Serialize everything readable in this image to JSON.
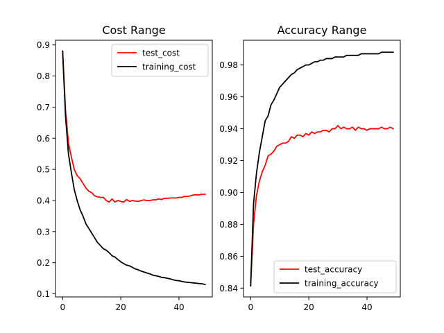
{
  "chart_data": [
    {
      "type": "line",
      "title": "Cost Range",
      "xlabel": "",
      "ylabel": "",
      "xlim": [
        -2.45,
        51.45
      ],
      "ylim": [
        0.09,
        0.915
      ],
      "xticks": [
        0,
        20,
        40
      ],
      "xtick_labels": [
        "0",
        "20",
        "40"
      ],
      "yticks": [
        0.1,
        0.2,
        0.3,
        0.4,
        0.5,
        0.6,
        0.7,
        0.8,
        0.9
      ],
      "ytick_labels": [
        "0.1",
        "0.2",
        "0.3",
        "0.4",
        "0.5",
        "0.6",
        "0.7",
        "0.8",
        "0.9"
      ],
      "grid": false,
      "legend_position": "top-right",
      "x": [
        0,
        1,
        2,
        3,
        4,
        5,
        6,
        7,
        8,
        9,
        10,
        11,
        12,
        13,
        14,
        15,
        16,
        17,
        18,
        19,
        20,
        21,
        22,
        23,
        24,
        25,
        26,
        27,
        28,
        29,
        30,
        31,
        32,
        33,
        34,
        35,
        36,
        37,
        38,
        39,
        40,
        41,
        42,
        43,
        44,
        45,
        46,
        47,
        48,
        49
      ],
      "series": [
        {
          "name": "test_cost",
          "color": "#ff0000",
          "values": [
            0.88,
            0.69,
            0.585,
            0.54,
            0.5,
            0.48,
            0.47,
            0.455,
            0.44,
            0.43,
            0.425,
            0.415,
            0.412,
            0.41,
            0.41,
            0.4,
            0.395,
            0.405,
            0.395,
            0.4,
            0.397,
            0.395,
            0.403,
            0.397,
            0.4,
            0.398,
            0.397,
            0.4,
            0.402,
            0.4,
            0.4,
            0.402,
            0.402,
            0.405,
            0.403,
            0.407,
            0.407,
            0.408,
            0.408,
            0.408,
            0.41,
            0.41,
            0.413,
            0.413,
            0.415,
            0.418,
            0.418,
            0.418,
            0.42,
            0.42
          ]
        },
        {
          "name": "training_cost",
          "color": "#000000",
          "values": [
            0.88,
            0.67,
            0.55,
            0.49,
            0.435,
            0.4,
            0.37,
            0.35,
            0.325,
            0.31,
            0.295,
            0.28,
            0.265,
            0.255,
            0.245,
            0.24,
            0.232,
            0.222,
            0.218,
            0.21,
            0.203,
            0.197,
            0.192,
            0.19,
            0.185,
            0.18,
            0.177,
            0.173,
            0.17,
            0.167,
            0.164,
            0.16,
            0.158,
            0.156,
            0.153,
            0.152,
            0.15,
            0.148,
            0.145,
            0.143,
            0.142,
            0.14,
            0.138,
            0.137,
            0.136,
            0.135,
            0.134,
            0.133,
            0.132,
            0.13
          ]
        }
      ]
    },
    {
      "type": "line",
      "title": "Accuracy Range",
      "xlabel": "",
      "ylabel": "",
      "xlim": [
        -2.45,
        51.45
      ],
      "ylim": [
        0.8345,
        0.9955
      ],
      "xticks": [
        0,
        20,
        40
      ],
      "xtick_labels": [
        "0",
        "20",
        "40"
      ],
      "yticks": [
        0.84,
        0.86,
        0.88,
        0.9,
        0.92,
        0.94,
        0.96,
        0.98
      ],
      "ytick_labels": [
        "0.84",
        "0.86",
        "0.88",
        "0.90",
        "0.92",
        "0.94",
        "0.96",
        "0.98"
      ],
      "grid": false,
      "legend_position": "bottom-right",
      "x": [
        0,
        1,
        2,
        3,
        4,
        5,
        6,
        7,
        8,
        9,
        10,
        11,
        12,
        13,
        14,
        15,
        16,
        17,
        18,
        19,
        20,
        21,
        22,
        23,
        24,
        25,
        26,
        27,
        28,
        29,
        30,
        31,
        32,
        33,
        34,
        35,
        36,
        37,
        38,
        39,
        40,
        41,
        42,
        43,
        44,
        45,
        46,
        47,
        48,
        49
      ],
      "series": [
        {
          "name": "test_accuracy",
          "color": "#ff0000",
          "values": [
            0.8415,
            0.88,
            0.898,
            0.907,
            0.913,
            0.917,
            0.923,
            0.924,
            0.926,
            0.929,
            0.93,
            0.931,
            0.931,
            0.932,
            0.935,
            0.934,
            0.936,
            0.936,
            0.935,
            0.937,
            0.936,
            0.938,
            0.937,
            0.938,
            0.938,
            0.939,
            0.939,
            0.938,
            0.94,
            0.94,
            0.942,
            0.94,
            0.941,
            0.94,
            0.94,
            0.941,
            0.939,
            0.941,
            0.94,
            0.94,
            0.939,
            0.94,
            0.94,
            0.94,
            0.94,
            0.941,
            0.94,
            0.94,
            0.941,
            0.94
          ]
        },
        {
          "name": "training_accuracy",
          "color": "#000000",
          "values": [
            0.8415,
            0.893,
            0.912,
            0.925,
            0.935,
            0.945,
            0.948,
            0.955,
            0.958,
            0.962,
            0.966,
            0.968,
            0.97,
            0.972,
            0.974,
            0.975,
            0.977,
            0.978,
            0.979,
            0.98,
            0.98,
            0.981,
            0.982,
            0.982,
            0.983,
            0.983,
            0.984,
            0.984,
            0.984,
            0.985,
            0.985,
            0.985,
            0.985,
            0.986,
            0.986,
            0.986,
            0.986,
            0.986,
            0.987,
            0.987,
            0.987,
            0.987,
            0.987,
            0.987,
            0.987,
            0.988,
            0.988,
            0.988,
            0.988,
            0.988
          ]
        }
      ]
    }
  ]
}
